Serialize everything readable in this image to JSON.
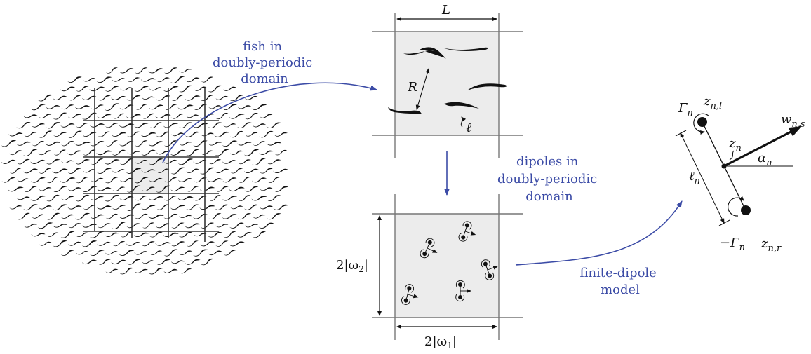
{
  "annotations": {
    "fish_domain": [
      "fish in",
      "doubly-periodic",
      "domain"
    ],
    "dipole_domain": [
      "dipoles in",
      "doubly-periodic",
      "domain"
    ],
    "finite_dipole": [
      "finite-dipole",
      "model"
    ]
  },
  "symbols": {
    "period_length": "L",
    "separation": "R",
    "fish_length": "ℓ",
    "period_vertical": "2|ω",
    "period_vertical_sub": "2",
    "period_vertical_close": "|",
    "period_horizontal": "2|ω",
    "period_horizontal_sub": "1",
    "period_horizontal_close": "|",
    "circulation_pos": "Γ",
    "circulation_pos_sub": "n",
    "circulation_neg": "−Γ",
    "circulation_neg_sub": "n",
    "left_vortex": "z",
    "left_vortex_sub": "n,l",
    "right_vortex": "z",
    "right_vortex_sub": "n,r",
    "center": "z",
    "center_sub": "n",
    "dipole_length": "ℓ",
    "dipole_length_sub": "n",
    "angle": "α",
    "angle_sub": "n",
    "velocity": "w",
    "velocity_sub": "n,s"
  },
  "colors": {
    "annotation": "#3b4ba6",
    "ink": "#111111",
    "domain_fill": "#ececec",
    "border": "#888888"
  }
}
